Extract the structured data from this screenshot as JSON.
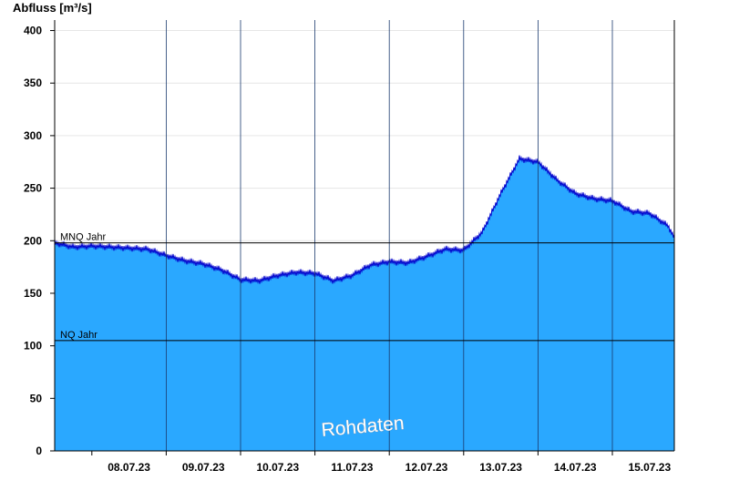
{
  "chart_data": {
    "type": "area",
    "ylabel": "Abfluss [m³/s]",
    "ylim": [
      0,
      410
    ],
    "yticks": [
      0,
      50,
      100,
      150,
      200,
      250,
      300,
      350,
      400
    ],
    "xlim": [
      "2023-07-07T12:00",
      "2023-07-15T20:00"
    ],
    "x_tick_labels": [
      "08.07.23",
      "09.07.23",
      "10.07.23",
      "11.07.23",
      "12.07.23",
      "13.07.23",
      "14.07.23",
      "15.07.23"
    ],
    "grid": true,
    "colors": {
      "fill": "#2aa8ff",
      "line": "#0000cc",
      "reference": "#000000",
      "grid": "#e6e6e6"
    },
    "reference_lines": [
      {
        "label": "MNQ Jahr",
        "value": 198
      },
      {
        "label": "NQ Jahr",
        "value": 105
      }
    ],
    "series": [
      {
        "x": [
          "2023-07-07T12:00",
          "2023-07-07T18:00",
          "2023-07-08T00:00",
          "2023-07-08T06:00",
          "2023-07-08T12:00",
          "2023-07-08T18:00",
          "2023-07-09T00:00",
          "2023-07-09T06:00",
          "2023-07-09T12:00",
          "2023-07-09T18:00",
          "2023-07-10T00:00",
          "2023-07-10T06:00",
          "2023-07-10T12:00",
          "2023-07-10T18:00",
          "2023-07-11T00:00",
          "2023-07-11T06:00",
          "2023-07-11T12:00",
          "2023-07-11T18:00",
          "2023-07-12T00:00",
          "2023-07-12T06:00",
          "2023-07-12T12:00",
          "2023-07-12T18:00",
          "2023-07-13T00:00",
          "2023-07-13T06:00",
          "2023-07-13T12:00",
          "2023-07-13T18:00",
          "2023-07-14T00:00",
          "2023-07-14T06:00",
          "2023-07-14T12:00",
          "2023-07-14T18:00",
          "2023-07-15T00:00",
          "2023-07-15T06:00",
          "2023-07-15T12:00",
          "2023-07-15T18:00",
          "2023-07-15T20:00"
        ],
        "values": [
          198,
          194,
          195,
          194,
          193,
          192,
          186,
          181,
          178,
          172,
          163,
          162,
          167,
          170,
          169,
          162,
          167,
          177,
          180,
          179,
          185,
          192,
          191,
          208,
          245,
          278,
          275,
          258,
          245,
          240,
          238,
          228,
          226,
          214,
          203
        ]
      }
    ],
    "watermark": "Rohdaten"
  }
}
